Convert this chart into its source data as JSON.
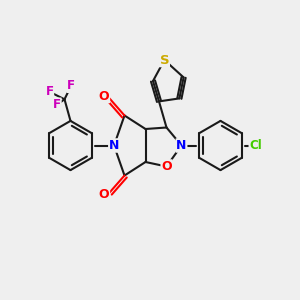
{
  "bg_color": "#efefef",
  "bond_color": "#1a1a1a",
  "bond_width": 1.5,
  "atom_colors": {
    "N": "#0000ff",
    "O": "#ff0000",
    "S": "#ccaa00",
    "F": "#cc00bb",
    "Cl": "#44cc00",
    "C": "#1a1a1a"
  },
  "fontsize": 8.5,
  "xlim": [
    0,
    10
  ],
  "ylim": [
    0,
    10
  ],
  "figsize": [
    3.0,
    3.0
  ],
  "dpi": 100
}
